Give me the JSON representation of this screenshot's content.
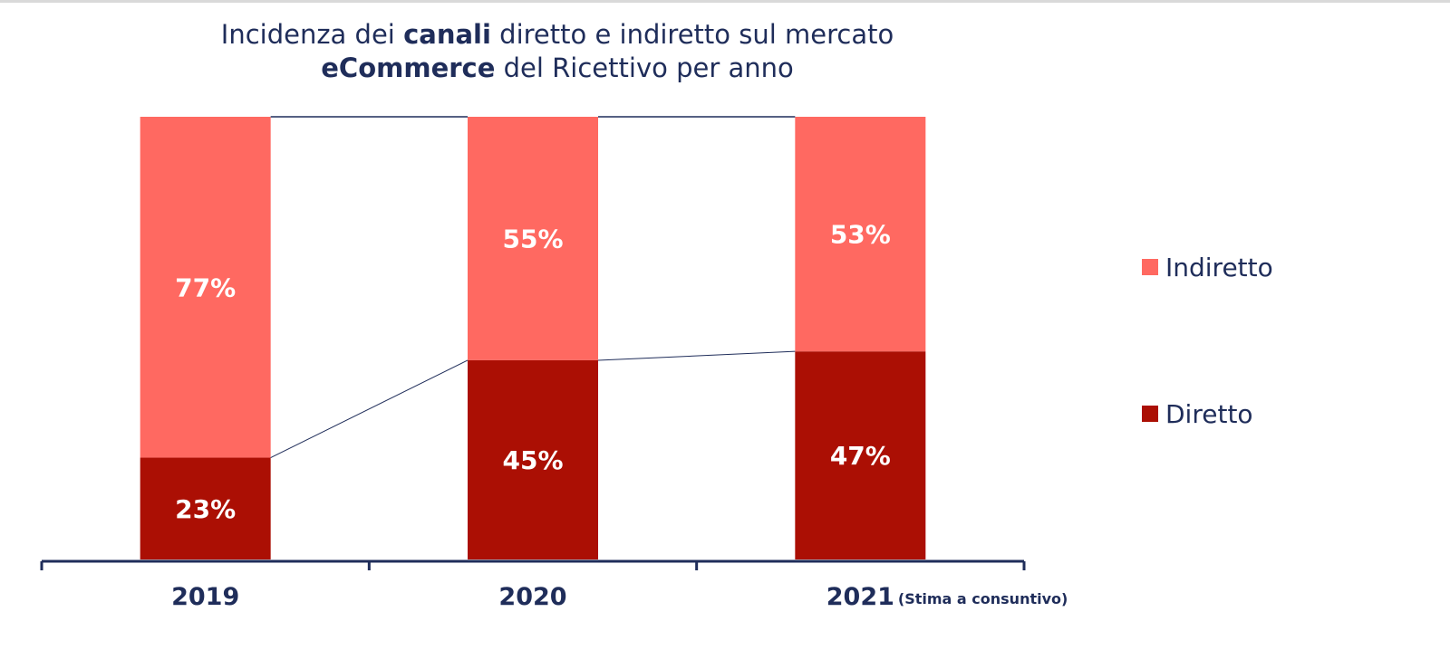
{
  "title": {
    "line1_pre": "Incidenza dei ",
    "line1_bold": "canali",
    "line1_post": " diretto e indiretto sul mercato",
    "line2_bold": "eCommerce",
    "line2_post": " del Ricettivo per anno"
  },
  "colors": {
    "indiretto": "#ff6961",
    "diretto": "#ab0f04",
    "axis": "#1f2d5a",
    "connector": "#1f2d5a",
    "value_label": "#ffffff"
  },
  "chart_data": {
    "type": "bar",
    "stacked": true,
    "percent": true,
    "categories": [
      "2019",
      "2020",
      "2021"
    ],
    "category_notes": [
      "",
      "",
      "(Stima a consuntivo)"
    ],
    "series": [
      {
        "name": "Diretto",
        "values": [
          23,
          45,
          47
        ],
        "labels": [
          "23%",
          "45%",
          "47%"
        ]
      },
      {
        "name": "Indiretto",
        "values": [
          77,
          55,
          53
        ],
        "labels": [
          "77%",
          "55%",
          "53%"
        ]
      }
    ],
    "ylim": [
      0,
      100
    ],
    "legend": "right",
    "legend_entries": [
      "Indiretto",
      "Diretto"
    ],
    "series_lines": true,
    "grid": false
  }
}
